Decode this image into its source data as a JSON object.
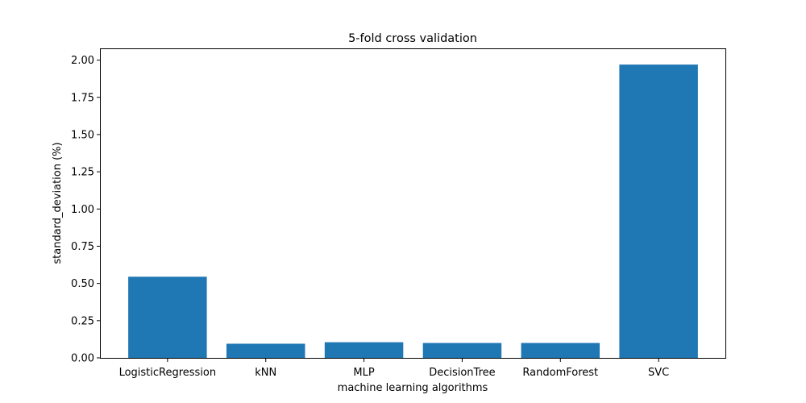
{
  "chart_data": {
    "type": "bar",
    "title": "5-fold cross validation",
    "xlabel": "machine learning algorithms",
    "ylabel": "standard_deviation (%)",
    "categories": [
      "LogisticRegression",
      "kNN",
      "MLP",
      "DecisionTree",
      "RandomForest",
      "SVC"
    ],
    "values": [
      0.545,
      0.095,
      0.105,
      0.1,
      0.1,
      1.97
    ],
    "ylim": [
      0,
      2.079
    ],
    "yticks": [
      "0.00",
      "0.25",
      "0.50",
      "0.75",
      "1.00",
      "1.25",
      "1.50",
      "1.75",
      "2.00"
    ],
    "bar_color": "#1f77b4",
    "grid": false
  }
}
